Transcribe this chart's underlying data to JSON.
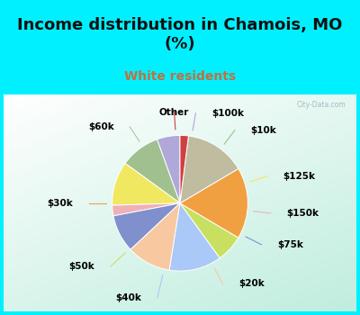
{
  "title": "Income distribution in Chamois, MO\n(%)",
  "subtitle": "White residents",
  "labels": [
    "$100k",
    "$10k",
    "$125k",
    "$150k",
    "$75k",
    "$20k",
    "$40k",
    "$50k",
    "$30k",
    "$60k",
    "Other"
  ],
  "sizes": [
    5.5,
    9.5,
    10.5,
    2.5,
    9.0,
    10.5,
    12.5,
    6.5,
    17.0,
    14.5,
    2.0
  ],
  "colors": [
    "#b0a8d8",
    "#a0c090",
    "#f0e860",
    "#f0b0b8",
    "#8090cc",
    "#f8c8a0",
    "#aac8f8",
    "#c8e060",
    "#f0a040",
    "#c0bca0",
    "#d04040"
  ],
  "bg_cyan": "#00f0ff",
  "bg_panel_left": "#e8f8f0",
  "bg_panel_right": "#c8e8e0",
  "startangle": 90,
  "label_fontsize": 7.5,
  "title_fontsize": 13,
  "subtitle_fontsize": 10,
  "subtitle_color": "#c07040",
  "title_color": "#111111",
  "watermark": "City-Data.com"
}
